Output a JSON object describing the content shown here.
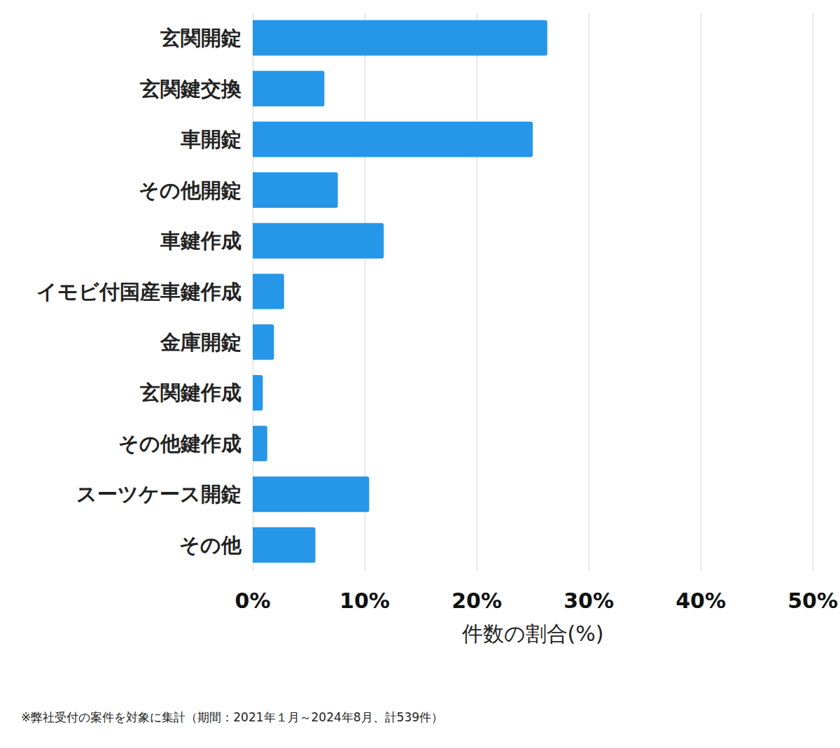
{
  "chart_data": {
    "type": "bar",
    "orientation": "horizontal",
    "categories": [
      "玄関開錠",
      "玄関鍵交換",
      "車開錠",
      "その他開錠",
      "車鍵作成",
      "イモビ付国産車鍵作成",
      "金庫開錠",
      "玄関鍵作成",
      "その他鍵作成",
      "スーツケース開錠",
      "その他"
    ],
    "values": [
      26.3,
      6.4,
      25.0,
      7.6,
      11.7,
      2.8,
      1.9,
      0.9,
      1.3,
      10.4,
      5.6
    ],
    "color": "#2696e8",
    "x_label": "件数の割合(%)",
    "xlim": [
      0,
      50
    ],
    "xticks": [
      {
        "value": 0,
        "label": "0%"
      },
      {
        "value": 10,
        "label": "10%"
      },
      {
        "value": 20,
        "label": "20%"
      },
      {
        "value": 30,
        "label": "30%"
      },
      {
        "value": 40,
        "label": "40%"
      },
      {
        "value": 50,
        "label": "50%"
      }
    ],
    "grid": true,
    "footnote": "※弊社受付の案件を対象に集計（期間：2021年１月～2024年8月、計539件）"
  }
}
